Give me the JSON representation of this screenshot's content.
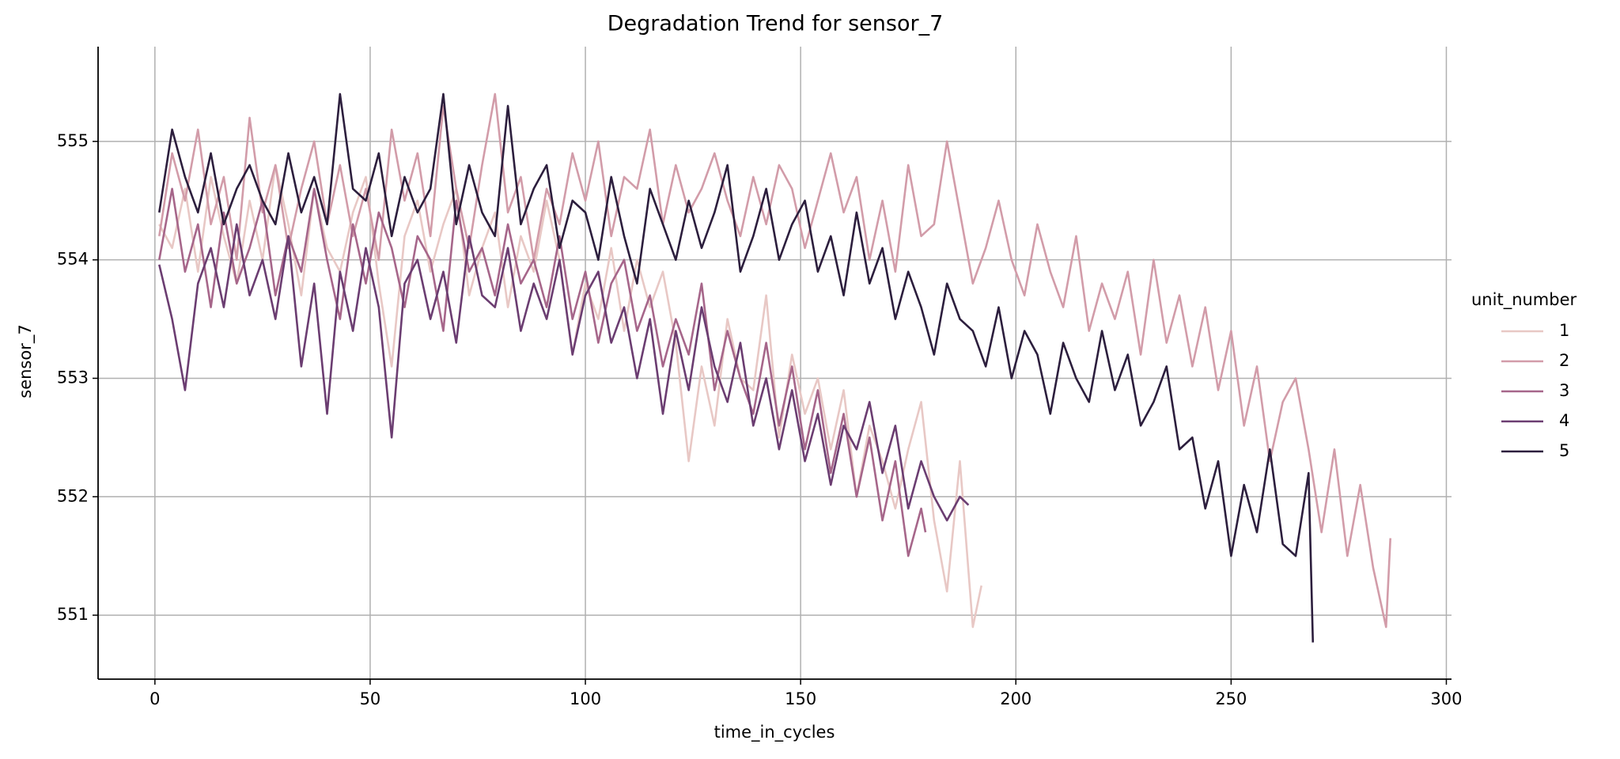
{
  "chart_data": {
    "type": "line",
    "title": "Degradation Trend for sensor_7",
    "xlabel": "time_in_cycles",
    "ylabel": "sensor_7",
    "legend_title": "unit_number",
    "legend": "right",
    "grid": true,
    "xlim": [
      -13.2,
      301.2
    ],
    "ylim": [
      550.46,
      555.8
    ],
    "xticks": [
      0,
      50,
      100,
      150,
      200,
      250,
      300
    ],
    "yticks": [
      551,
      552,
      553,
      554,
      555
    ],
    "series": [
      {
        "name": "1",
        "color": "#e8c8c5",
        "x": [
          1,
          4,
          7,
          10,
          13,
          16,
          19,
          22,
          25,
          28,
          31,
          34,
          37,
          40,
          43,
          46,
          49,
          52,
          55,
          58,
          61,
          64,
          67,
          70,
          73,
          76,
          79,
          82,
          85,
          88,
          91,
          94,
          97,
          100,
          103,
          106,
          109,
          112,
          115,
          118,
          121,
          124,
          127,
          130,
          133,
          136,
          139,
          142,
          145,
          148,
          151,
          154,
          157,
          160,
          163,
          166,
          169,
          172,
          175,
          178,
          181,
          184,
          187,
          190,
          192
        ],
        "values": [
          554.3,
          554.1,
          554.6,
          553.9,
          554.7,
          554.2,
          553.8,
          554.5,
          554.0,
          554.8,
          554.3,
          553.7,
          554.6,
          554.1,
          553.9,
          554.4,
          554.7,
          553.8,
          553.1,
          554.2,
          554.5,
          553.9,
          554.3,
          554.6,
          553.7,
          554.1,
          554.4,
          553.6,
          554.2,
          553.9,
          554.5,
          554.0,
          553.2,
          553.8,
          553.5,
          554.1,
          553.4,
          554.0,
          553.6,
          553.9,
          553.3,
          552.3,
          553.1,
          552.6,
          553.5,
          553.0,
          552.9,
          553.7,
          552.5,
          553.2,
          552.7,
          553.0,
          552.4,
          552.9,
          552.0,
          552.6,
          552.3,
          551.9,
          552.4,
          552.8,
          551.8,
          551.2,
          552.3,
          550.9,
          551.25
        ]
      },
      {
        "name": "2",
        "color": "#d29ca9",
        "x": [
          1,
          4,
          7,
          10,
          13,
          16,
          19,
          22,
          25,
          28,
          31,
          34,
          37,
          40,
          43,
          46,
          49,
          52,
          55,
          58,
          61,
          64,
          67,
          70,
          73,
          76,
          79,
          82,
          85,
          88,
          91,
          94,
          97,
          100,
          103,
          106,
          109,
          112,
          115,
          118,
          121,
          124,
          127,
          130,
          133,
          136,
          139,
          142,
          145,
          148,
          151,
          154,
          157,
          160,
          163,
          166,
          169,
          172,
          175,
          178,
          181,
          184,
          187,
          190,
          193,
          196,
          199,
          202,
          205,
          208,
          211,
          214,
          217,
          220,
          223,
          226,
          229,
          232,
          235,
          238,
          241,
          244,
          247,
          250,
          253,
          256,
          259,
          262,
          265,
          268,
          271,
          274,
          277,
          280,
          283,
          286,
          287
        ],
        "values": [
          554.2,
          554.9,
          554.5,
          555.1,
          554.3,
          554.7,
          554.0,
          555.2,
          554.4,
          554.8,
          554.1,
          554.6,
          555.0,
          554.3,
          554.8,
          554.2,
          554.6,
          554.0,
          555.1,
          554.5,
          554.9,
          554.2,
          555.3,
          554.6,
          554.1,
          554.8,
          555.4,
          554.4,
          554.7,
          554.0,
          554.6,
          554.3,
          554.9,
          554.5,
          555.0,
          554.2,
          554.7,
          554.6,
          555.1,
          554.3,
          554.8,
          554.4,
          554.6,
          554.9,
          554.5,
          554.2,
          554.7,
          554.3,
          554.8,
          554.6,
          554.1,
          554.5,
          554.9,
          554.4,
          554.7,
          554.0,
          554.5,
          553.9,
          554.8,
          554.2,
          554.3,
          555.0,
          554.4,
          553.8,
          554.1,
          554.5,
          554.0,
          553.7,
          554.3,
          553.9,
          553.6,
          554.2,
          553.4,
          553.8,
          553.5,
          553.9,
          553.2,
          554.0,
          553.3,
          553.7,
          553.1,
          553.6,
          552.9,
          553.4,
          552.6,
          553.1,
          552.3,
          552.8,
          553.0,
          552.4,
          551.7,
          552.4,
          551.5,
          552.1,
          551.4,
          550.9,
          551.65
        ]
      },
      {
        "name": "3",
        "color": "#a6668a",
        "x": [
          1,
          4,
          7,
          10,
          13,
          16,
          19,
          22,
          25,
          28,
          31,
          34,
          37,
          40,
          43,
          46,
          49,
          52,
          55,
          58,
          61,
          64,
          67,
          70,
          73,
          76,
          79,
          82,
          85,
          88,
          91,
          94,
          97,
          100,
          103,
          106,
          109,
          112,
          115,
          118,
          121,
          124,
          127,
          130,
          133,
          136,
          139,
          142,
          145,
          148,
          151,
          154,
          157,
          160,
          163,
          166,
          169,
          172,
          175,
          178,
          179
        ],
        "values": [
          554.0,
          554.6,
          553.9,
          554.3,
          553.6,
          554.4,
          553.8,
          554.1,
          554.5,
          553.7,
          554.2,
          553.9,
          554.6,
          554.0,
          553.5,
          554.3,
          553.8,
          554.4,
          554.1,
          553.6,
          554.2,
          554.0,
          553.4,
          554.5,
          553.9,
          554.1,
          553.7,
          554.3,
          553.8,
          554.0,
          553.6,
          554.2,
          553.5,
          553.9,
          553.3,
          553.8,
          554.0,
          553.4,
          553.7,
          553.1,
          553.5,
          553.2,
          553.8,
          552.9,
          553.4,
          553.0,
          552.7,
          553.3,
          552.6,
          553.1,
          552.4,
          552.9,
          552.2,
          552.7,
          552.0,
          552.5,
          551.8,
          552.3,
          551.5,
          551.9,
          551.7
        ]
      },
      {
        "name": "4",
        "color": "#6b3d71",
        "x": [
          1,
          4,
          7,
          10,
          13,
          16,
          19,
          22,
          25,
          28,
          31,
          34,
          37,
          40,
          43,
          46,
          49,
          52,
          55,
          58,
          61,
          64,
          67,
          70,
          73,
          76,
          79,
          82,
          85,
          88,
          91,
          94,
          97,
          100,
          103,
          106,
          109,
          112,
          115,
          118,
          121,
          124,
          127,
          130,
          133,
          136,
          139,
          142,
          145,
          148,
          151,
          154,
          157,
          160,
          163,
          166,
          169,
          172,
          175,
          178,
          181,
          184,
          187,
          189
        ],
        "values": [
          553.96,
          553.5,
          552.9,
          553.8,
          554.1,
          553.6,
          554.3,
          553.7,
          554.0,
          553.5,
          554.2,
          553.1,
          553.8,
          552.7,
          553.9,
          553.4,
          554.1,
          553.6,
          552.5,
          553.8,
          554.0,
          553.5,
          553.9,
          553.3,
          554.2,
          553.7,
          553.6,
          554.1,
          553.4,
          553.8,
          553.5,
          554.0,
          553.2,
          553.7,
          553.9,
          553.3,
          553.6,
          553.0,
          553.5,
          552.7,
          553.4,
          552.9,
          553.6,
          553.1,
          552.8,
          553.3,
          552.6,
          553.0,
          552.4,
          552.9,
          552.3,
          552.7,
          552.1,
          552.6,
          552.4,
          552.8,
          552.2,
          552.6,
          551.9,
          552.3,
          552.0,
          551.8,
          552.0,
          551.93
        ]
      },
      {
        "name": "5",
        "color": "#2c1e3d",
        "x": [
          1,
          4,
          7,
          10,
          13,
          16,
          19,
          22,
          25,
          28,
          31,
          34,
          37,
          40,
          43,
          46,
          49,
          52,
          55,
          58,
          61,
          64,
          67,
          70,
          73,
          76,
          79,
          82,
          85,
          88,
          91,
          94,
          97,
          100,
          103,
          106,
          109,
          112,
          115,
          118,
          121,
          124,
          127,
          130,
          133,
          136,
          139,
          142,
          145,
          148,
          151,
          154,
          157,
          160,
          163,
          166,
          169,
          172,
          175,
          178,
          181,
          184,
          187,
          190,
          193,
          196,
          199,
          202,
          205,
          208,
          211,
          214,
          217,
          220,
          223,
          226,
          229,
          232,
          235,
          238,
          241,
          244,
          247,
          250,
          253,
          256,
          259,
          262,
          265,
          268,
          269
        ],
        "values": [
          554.4,
          555.1,
          554.7,
          554.4,
          554.9,
          554.3,
          554.6,
          554.8,
          554.5,
          554.3,
          554.9,
          554.4,
          554.7,
          554.3,
          555.4,
          554.6,
          554.5,
          554.9,
          554.2,
          554.7,
          554.4,
          554.6,
          555.4,
          554.3,
          554.8,
          554.4,
          554.2,
          555.3,
          554.3,
          554.6,
          554.8,
          554.1,
          554.5,
          554.4,
          554.0,
          554.7,
          554.2,
          553.8,
          554.6,
          554.3,
          554.0,
          554.5,
          554.1,
          554.4,
          554.8,
          553.9,
          554.2,
          554.6,
          554.0,
          554.3,
          554.5,
          553.9,
          554.2,
          553.7,
          554.4,
          553.8,
          554.1,
          553.5,
          553.9,
          553.6,
          553.2,
          553.8,
          553.5,
          553.4,
          553.1,
          553.6,
          553.0,
          553.4,
          553.2,
          552.7,
          553.3,
          553.0,
          552.8,
          553.4,
          552.9,
          553.2,
          552.6,
          552.8,
          553.1,
          552.4,
          552.5,
          551.9,
          552.3,
          551.5,
          552.1,
          551.7,
          552.4,
          551.6,
          551.5,
          552.2,
          550.77
        ]
      }
    ]
  }
}
